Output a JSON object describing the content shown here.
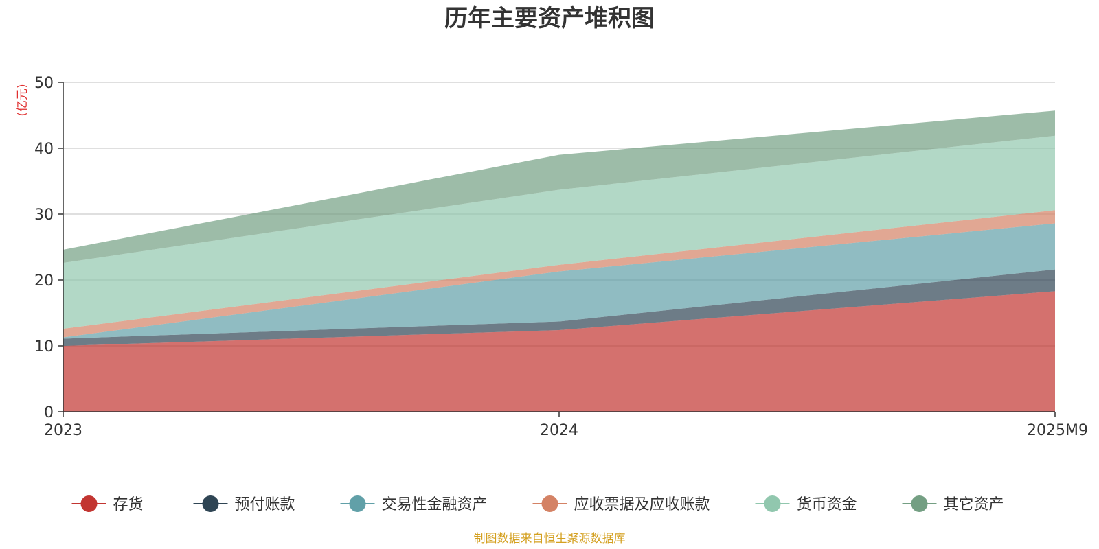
{
  "chart_data": {
    "type": "area",
    "stacked": true,
    "title": "历年主要资产堆积图",
    "ylabel": "(亿元)",
    "xlabel": "",
    "categories": [
      "2023",
      "2024",
      "2025M9"
    ],
    "ylim": [
      0,
      50
    ],
    "yticks": [
      0,
      10,
      20,
      30,
      40,
      50
    ],
    "grid": true,
    "legend_position": "bottom",
    "series": [
      {
        "name": "存货",
        "values": [
          10.0,
          12.4,
          18.3
        ],
        "color": "#c23531"
      },
      {
        "name": "预付账款",
        "values": [
          1.1,
          1.3,
          3.3
        ],
        "color": "#2f4554"
      },
      {
        "name": "交易性金融资产",
        "values": [
          0.2,
          7.6,
          7.0
        ],
        "color": "#61a0a8"
      },
      {
        "name": "应收票据及应收账款",
        "values": [
          1.3,
          1.0,
          2.0
        ],
        "color": "#d48265"
      },
      {
        "name": "货币资金",
        "values": [
          10.0,
          11.4,
          11.3
        ],
        "color": "#91c7ae"
      },
      {
        "name": "其它资产",
        "values": [
          2.0,
          5.3,
          3.8
        ],
        "color": "#749f83"
      }
    ],
    "source": "制图数据来自恒生聚源数据库",
    "unit_color": "#e03030",
    "source_color": "#d4a020"
  }
}
